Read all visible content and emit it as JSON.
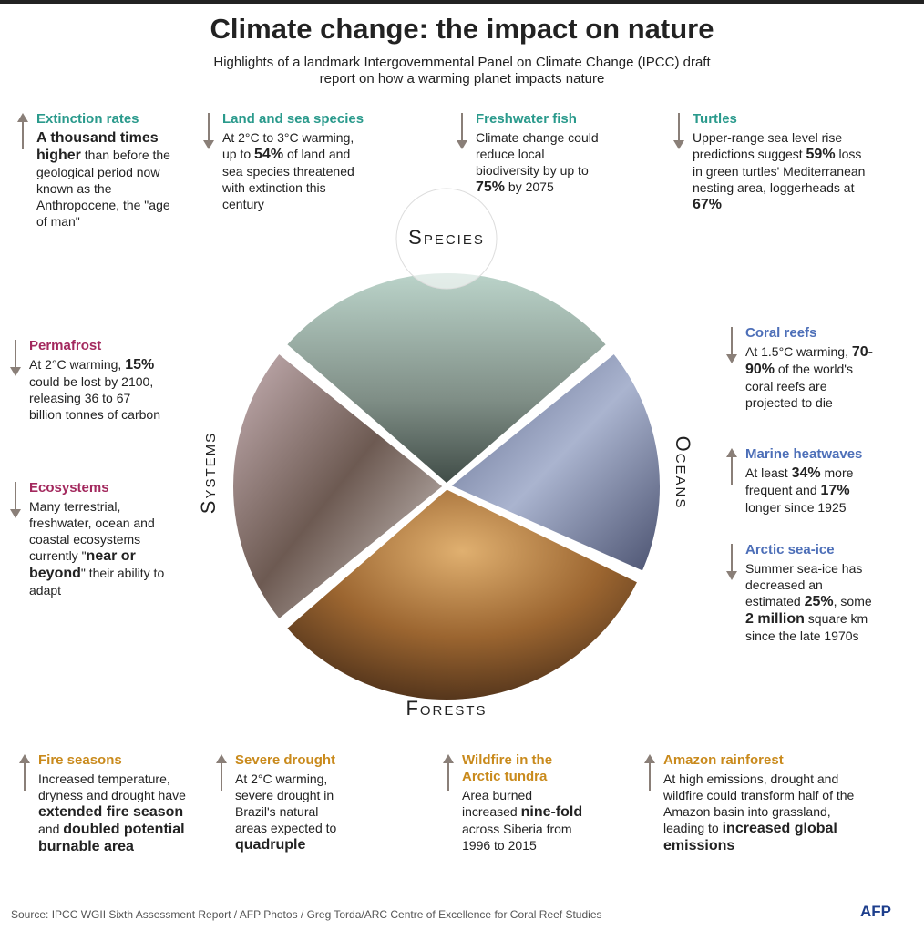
{
  "header": {
    "title": "Climate change: the impact on nature",
    "subtitle": "Highlights of a landmark Intergovernmental Panel on Climate Change (IPCC) draft report on how a warming planet impacts nature"
  },
  "sections": [
    {
      "label": "Species",
      "color": "#2a9a8c",
      "cards": [
        {
          "title": "Extinction rates",
          "arrow": "up",
          "text": [
            {
              "t": "A thousand times higher",
              "b": true
            },
            {
              "t": " than before the geological period now known as the Anthropocene, the \"age of man\""
            }
          ]
        },
        {
          "title": "Land and sea species",
          "arrow": "down",
          "text": [
            {
              "t": "At 2°C to 3°C warming, up to "
            },
            {
              "t": "54%",
              "b": true
            },
            {
              "t": " of land and sea species threatened with extinction this century"
            }
          ]
        },
        {
          "title": "Freshwater fish",
          "arrow": "down",
          "text": [
            {
              "t": "Climate change could reduce local biodiversity by up to "
            },
            {
              "t": "75%",
              "b": true
            },
            {
              "t": " by 2075"
            }
          ]
        },
        {
          "title": "Turtles",
          "arrow": "down",
          "text": [
            {
              "t": "Upper-range sea level rise predictions suggest "
            },
            {
              "t": "59%",
              "b": true
            },
            {
              "t": " loss in green turtles' Mediterranean nesting area, loggerheads at "
            },
            {
              "t": "67%",
              "b": true
            }
          ]
        }
      ]
    },
    {
      "label": "Oceans",
      "color": "#4d6fb8",
      "cards": [
        {
          "title": "Coral reefs",
          "arrow": "down",
          "text": [
            {
              "t": "At 1.5°C warming, "
            },
            {
              "t": "70-90%",
              "b": true
            },
            {
              "t": " of the world's coral reefs are projected to die"
            }
          ]
        },
        {
          "title": "Marine heatwaves",
          "arrow": "up",
          "text": [
            {
              "t": "At least "
            },
            {
              "t": "34%",
              "b": true
            },
            {
              "t": " more frequent and "
            },
            {
              "t": "17%",
              "b": true
            },
            {
              "t": " longer since 1925"
            }
          ]
        },
        {
          "title": "Arctic sea-ice",
          "arrow": "down",
          "text": [
            {
              "t": "Summer sea-ice has decreased an estimated "
            },
            {
              "t": "25%",
              "b": true
            },
            {
              "t": ", some "
            },
            {
              "t": "2 million",
              "b": true
            },
            {
              "t": " square km since the late 1970s"
            }
          ]
        }
      ]
    },
    {
      "label": "Forests",
      "color": "#c98a1c",
      "cards": [
        {
          "title": "Fire seasons",
          "arrow": "up",
          "text": [
            {
              "t": "Increased temperature, dryness and drought have "
            },
            {
              "t": "extended fire season",
              "b": true
            },
            {
              "t": " and "
            },
            {
              "t": "doubled potential burnable area",
              "b": true
            }
          ]
        },
        {
          "title": "Severe drought",
          "arrow": "up",
          "text": [
            {
              "t": "At 2°C warming, severe drought in Brazil's natural areas expected to "
            },
            {
              "t": "quadruple",
              "b": true
            }
          ]
        },
        {
          "title": "Wildfire in the Arctic tundra",
          "arrow": "up",
          "text": [
            {
              "t": "Area burned increased "
            },
            {
              "t": "nine-fold",
              "b": true
            },
            {
              "t": " across Siberia from 1996 to 2015"
            }
          ]
        },
        {
          "title": "Amazon rainforest",
          "arrow": "up",
          "text": [
            {
              "t": "At high emissions, drought and wildfire could transform half of the Amazon basin into grassland, leading to "
            },
            {
              "t": "increased global emissions",
              "b": true
            }
          ]
        }
      ]
    },
    {
      "label": "Systems",
      "color": "#a3295e",
      "cards": [
        {
          "title": "Permafrost",
          "arrow": "down",
          "text": [
            {
              "t": "At 2°C warming, "
            },
            {
              "t": "15%",
              "b": true
            },
            {
              "t": " could be lost by 2100, releasing 36 to 67 billion tonnes of carbon"
            }
          ]
        },
        {
          "title": "Ecosystems",
          "arrow": "down",
          "text": [
            {
              "t": "Many terrestrial, freshwater, ocean and coastal ecosystems currently \""
            },
            {
              "t": "near or beyond",
              "b": true
            },
            {
              "t": "\" their ability to adapt"
            }
          ]
        }
      ]
    }
  ],
  "footer": {
    "source": "Source: IPCC WGII Sixth Assessment Report / AFP Photos / Greg Torda/ARC Centre of Excellence for Coral Reef Studies",
    "logo": "AFP"
  }
}
